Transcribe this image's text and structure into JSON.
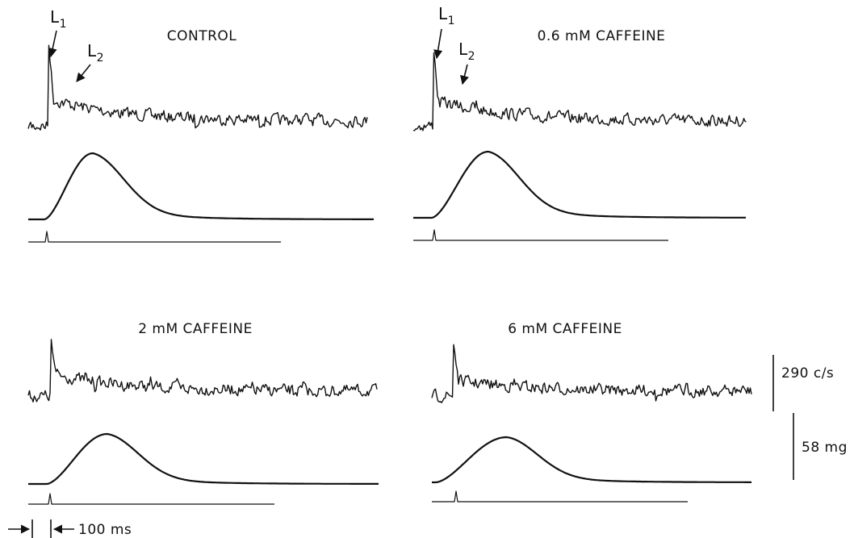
{
  "panels": [
    {
      "title": "CONTROL",
      "annotations": [
        {
          "letter": "L",
          "subscript": "1"
        },
        {
          "letter": "L",
          "subscript": "2"
        }
      ]
    },
    {
      "title": "0.6 mM CAFFEINE",
      "annotations": [
        {
          "letter": "L",
          "subscript": "1"
        },
        {
          "letter": "L",
          "subscript": "2"
        }
      ]
    },
    {
      "title": "2 mM CAFFEINE"
    },
    {
      "title": "6 mM CAFFEINE"
    }
  ],
  "scale_bars": [
    {
      "label": "290 c/s"
    },
    {
      "label": "58 mg"
    },
    {
      "label": "100 ms"
    }
  ]
}
